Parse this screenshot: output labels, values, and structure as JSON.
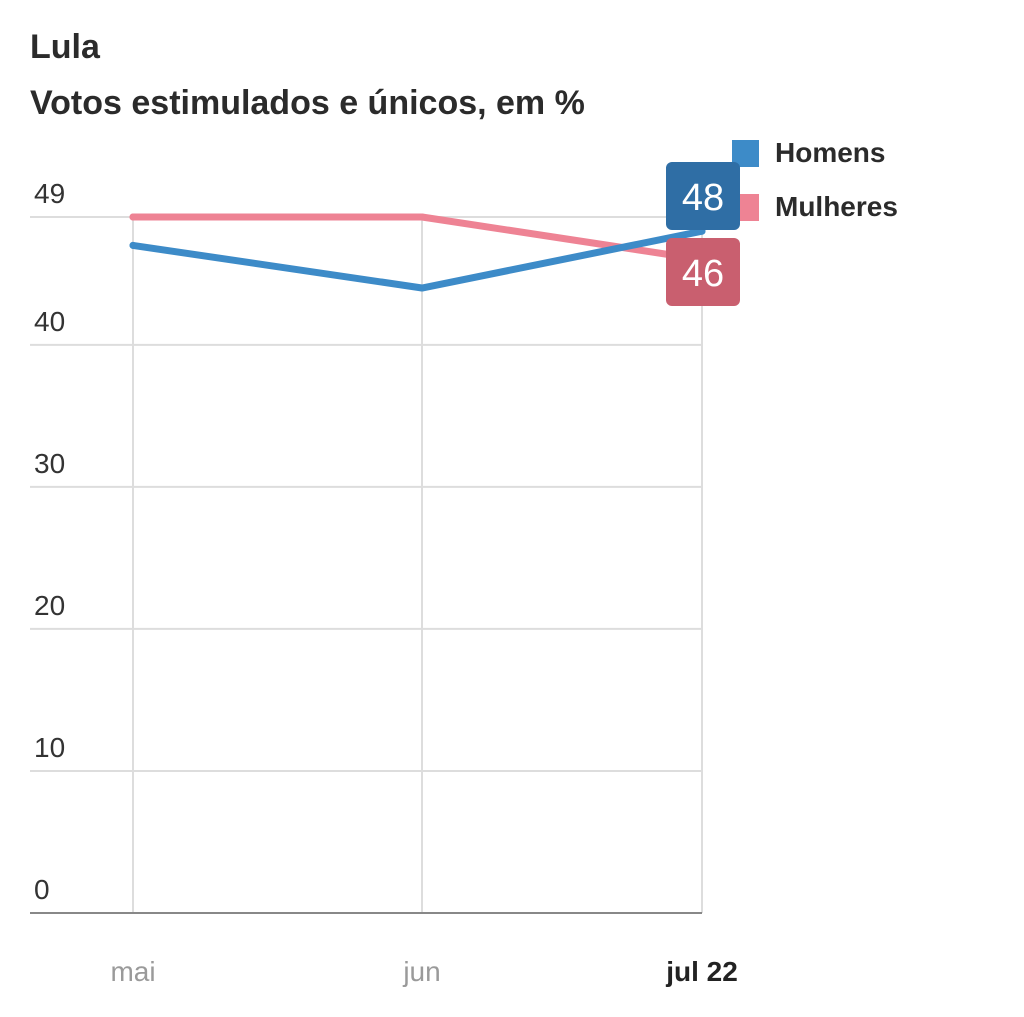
{
  "title": "Lula",
  "subtitle": "Votos estimulados e únicos, em %",
  "colors": {
    "homens_line": "#3d8bc8",
    "homens_label_bg": "#2f6ea5",
    "mulheres_line": "#ee8394",
    "mulheres_label_bg": "#c95f6f",
    "grid": "#dddddd",
    "axis": "#888888",
    "tick_text": "#333333",
    "x_tick_muted": "#9a9a9a",
    "x_tick_strong": "#222222"
  },
  "chart_data": {
    "type": "line",
    "title": "Lula",
    "subtitle": "Votos estimulados e únicos, em %",
    "categories": [
      "mai",
      "jun",
      "jul 22"
    ],
    "y_ticks": [
      0,
      10,
      20,
      30,
      40,
      49
    ],
    "ylim": [
      0,
      49
    ],
    "grid": true,
    "legend_position": "top-right",
    "series": [
      {
        "name": "Homens",
        "values": [
          47,
          44,
          48
        ],
        "end_label": "48",
        "color": "#3d8bc8"
      },
      {
        "name": "Mulheres",
        "values": [
          49,
          49,
          46
        ],
        "end_label": "46",
        "color": "#ee8394"
      }
    ]
  }
}
